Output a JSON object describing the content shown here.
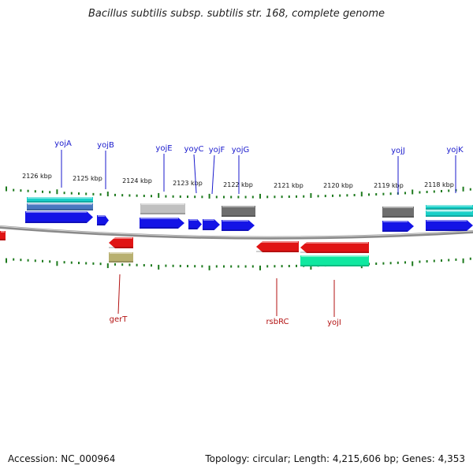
{
  "title": "Bacillus subtilis subsp. subtilis str. 168, complete genome",
  "footer": {
    "accession": "Accession: NC_000964",
    "stats": "Topology: circular; Length: 4,215,606 bp; Genes: 4,353"
  },
  "colors": {
    "blue_feature": "#1414e6",
    "red_feature": "#e01414",
    "teal_feature": "#18d0c8",
    "green_feature": "#10e8a0",
    "gray_feature": "#6e6e6e",
    "lightgray_feature": "#c0c0c0",
    "khaki_feature": "#b8b070",
    "slate_feature": "#4a78c0",
    "tick_color": "#1d7a1d",
    "backbone": "#8a8a8a",
    "top_label": "#1a1acd",
    "bottom_label": "#b31212"
  },
  "scale_labels": [
    {
      "text": "2126 kbp",
      "kbp": 2126
    },
    {
      "text": "2125 kbp",
      "kbp": 2125
    },
    {
      "text": "2124 kbp",
      "kbp": 2124
    },
    {
      "text": "2123 kbp",
      "kbp": 2123
    },
    {
      "text": "2122 kbp",
      "kbp": 2122
    },
    {
      "text": "2121 kbp",
      "kbp": 2121
    },
    {
      "text": "2120 kbp",
      "kbp": 2120
    },
    {
      "text": "2119 kbp",
      "kbp": 2119
    },
    {
      "text": "2118 kbp",
      "kbp": 2118
    }
  ],
  "top_genes": [
    {
      "name": "yojA"
    },
    {
      "name": "yojB"
    },
    {
      "name": "yojE"
    },
    {
      "name": "yoyC"
    },
    {
      "name": "yojF"
    },
    {
      "name": "yojG"
    },
    {
      "name": "yojJ"
    },
    {
      "name": "yojK"
    }
  ],
  "bottom_genes": [
    {
      "name": "gerT"
    },
    {
      "name": "rsbRC"
    },
    {
      "name": "yojI"
    }
  ]
}
